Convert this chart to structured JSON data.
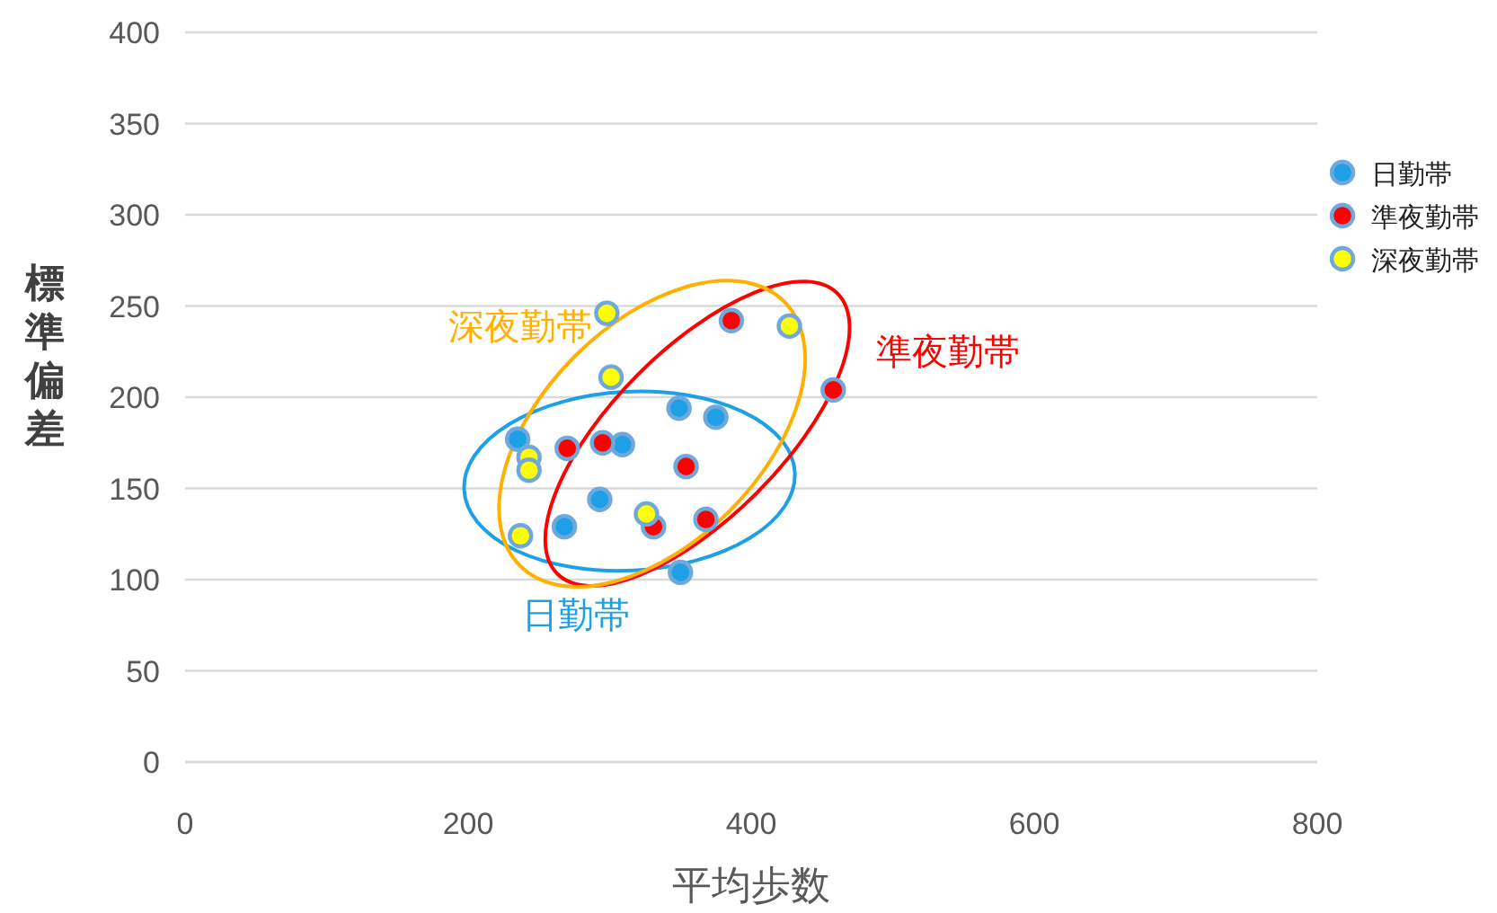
{
  "chart_data": {
    "type": "scatter",
    "xlabel": "平均歩数",
    "ylabel": "標準偏差",
    "xlim": [
      0,
      800
    ],
    "xticks": [
      0,
      200,
      400,
      600,
      800
    ],
    "ylim": [
      0,
      400
    ],
    "yticks": [
      0,
      50,
      100,
      150,
      200,
      250,
      300,
      350,
      400
    ],
    "grid": "y",
    "legend": "right",
    "marker": "circle",
    "series": [
      {
        "name": "日勤帯",
        "color": "#1ea0e6",
        "x": [
          235,
          268,
          293,
          309,
          349,
          375,
          350
        ],
        "values": [
          177,
          129,
          144,
          174,
          194,
          189,
          104
        ]
      },
      {
        "name": "準夜勤帯",
        "color": "#ff0000",
        "x": [
          270,
          295,
          354,
          331,
          368,
          386,
          458
        ],
        "values": [
          172,
          175,
          162,
          129,
          133,
          242,
          204
        ]
      },
      {
        "name": "深夜勤帯",
        "color": "#ffff00",
        "x": [
          298,
          301,
          427,
          243,
          243,
          237,
          326
        ],
        "values": [
          246,
          211,
          239,
          167,
          160,
          124,
          136
        ]
      }
    ],
    "annotations": [
      "日勤帯",
      "準夜勤帯",
      "深夜勤帯"
    ]
  }
}
